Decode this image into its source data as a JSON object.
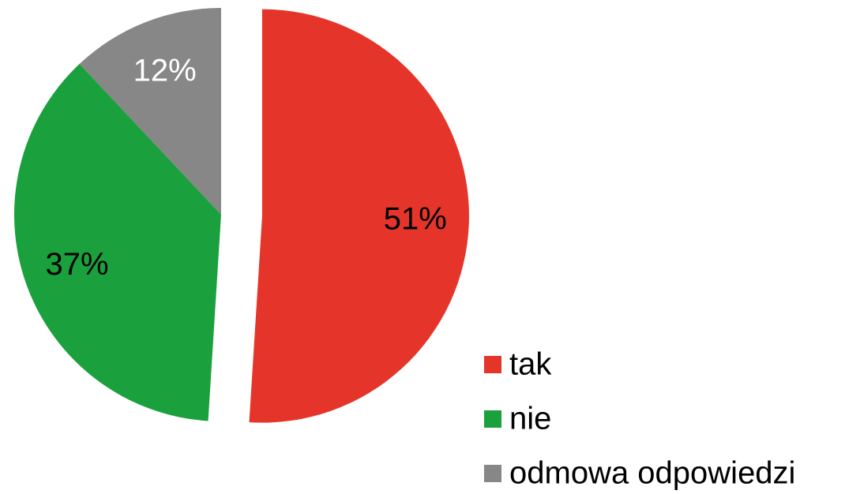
{
  "chart_data": {
    "type": "pie",
    "categories": [
      "tak",
      "nie",
      "odmowa odpowiedzi"
    ],
    "values": [
      51,
      37,
      12
    ],
    "value_labels": [
      "51%",
      "37%",
      "12%"
    ],
    "colors": [
      "#e5352b",
      "#1aa03c",
      "#878787"
    ],
    "label_colors": [
      "#000000",
      "#000000",
      "#ffffff"
    ],
    "legend": "bottom-right"
  }
}
